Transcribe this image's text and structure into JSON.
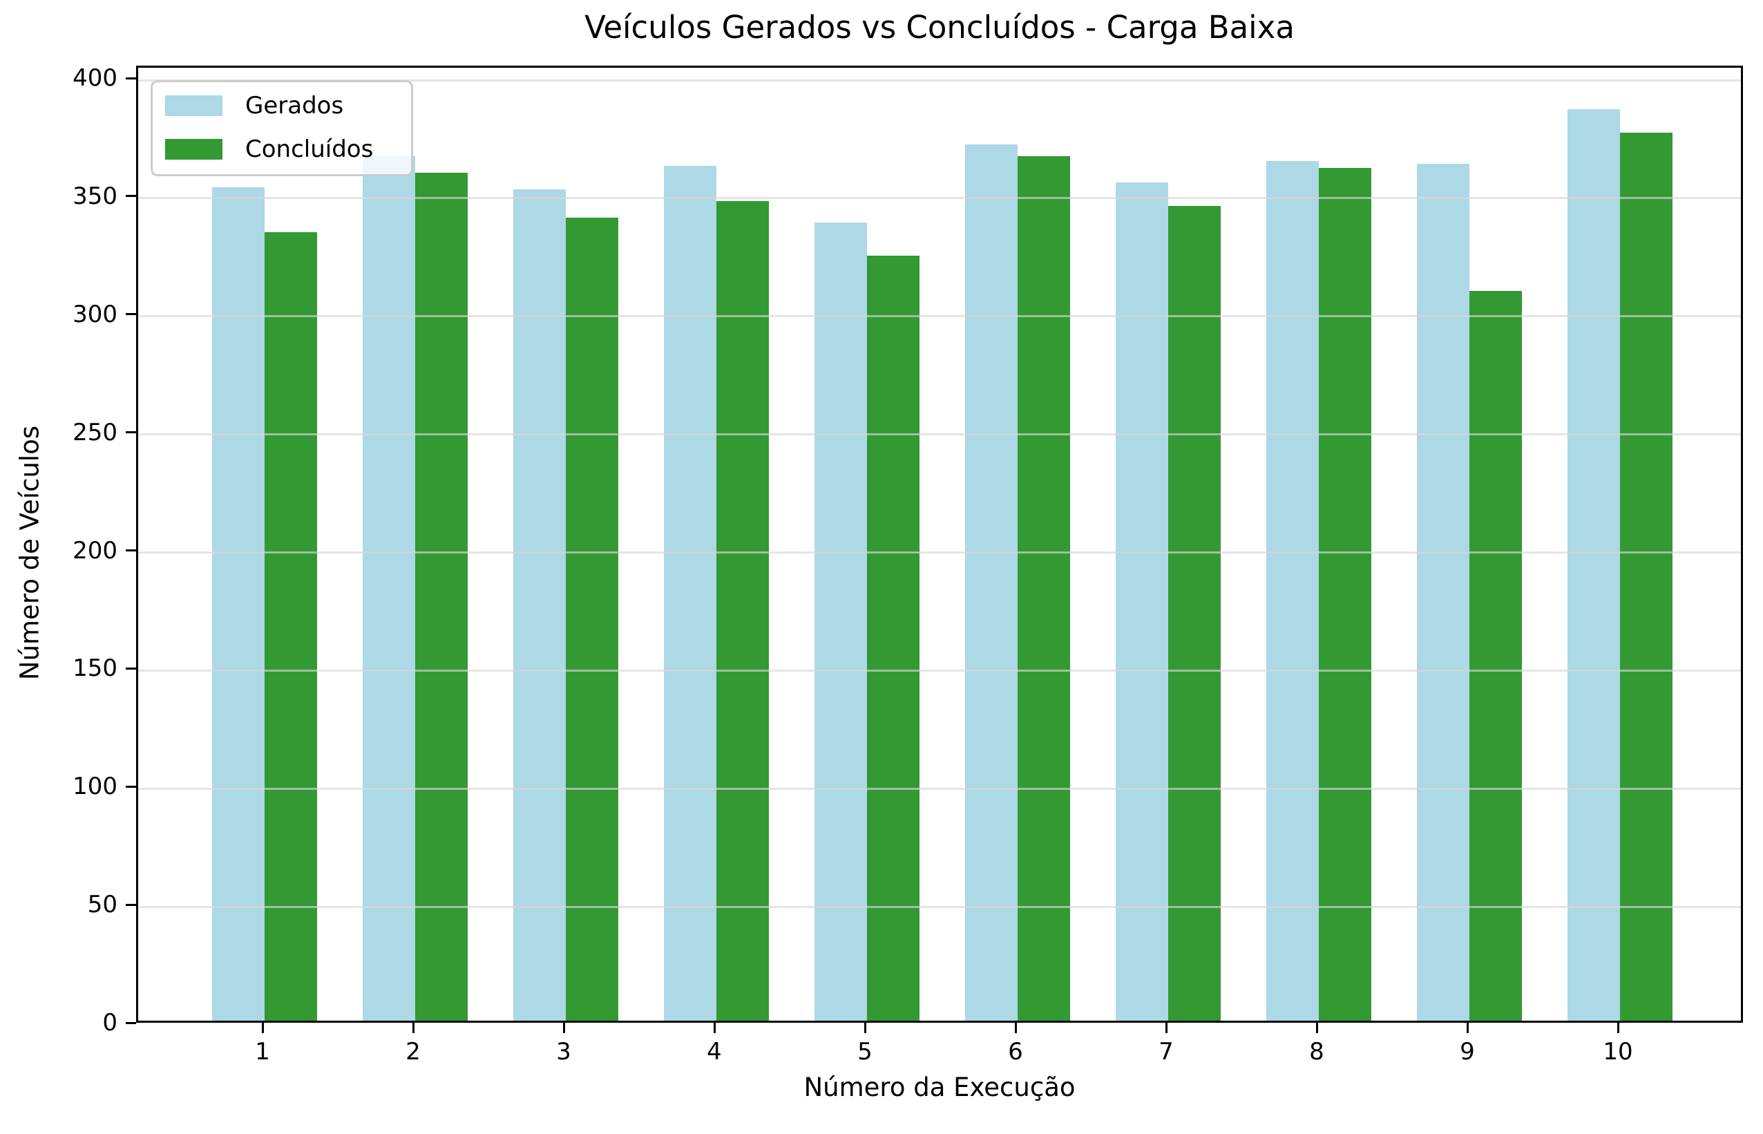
{
  "chart_data": {
    "type": "bar",
    "title": "Veículos Gerados vs Concluídos - Carga Baixa",
    "xlabel": "Número da Execução",
    "ylabel": "Número de Veículos",
    "categories": [
      "1",
      "2",
      "3",
      "4",
      "5",
      "6",
      "7",
      "8",
      "9",
      "10"
    ],
    "series": [
      {
        "name": "Gerados",
        "color": "#add8e6",
        "values": [
          353,
          366,
          352,
          362,
          338,
          371,
          355,
          364,
          363,
          386
        ]
      },
      {
        "name": "Concluídos",
        "color": "#339933",
        "values": [
          334,
          359,
          340,
          347,
          324,
          366,
          345,
          361,
          309,
          376
        ]
      }
    ],
    "y_ticks": [
      0,
      50,
      100,
      150,
      200,
      250,
      300,
      350,
      400
    ],
    "ylim": [
      0,
      405.3
    ],
    "grid": "y",
    "legend_position": "upper left",
    "colors": {
      "background": "#ffffff",
      "spine": "#000000",
      "gridline": "rgba(215,215,215,0.65)",
      "text": "#000000",
      "legend_border": "#cccccc",
      "legend_bg": "rgba(255,255,255,0.8)"
    }
  }
}
